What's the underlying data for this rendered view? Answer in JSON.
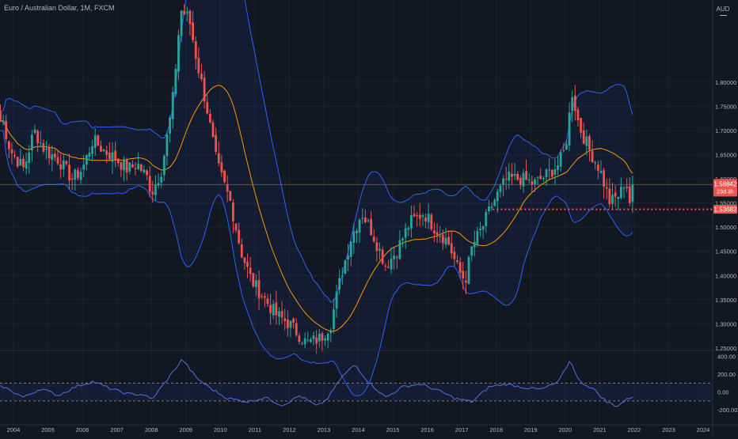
{
  "symbol": {
    "title": "Euro / Australian Dollar, 1M, FXCM",
    "currency": "AUD"
  },
  "colors": {
    "background": "#131722",
    "up": "#26a69a",
    "down": "#ef5350",
    "band": "#2962ff",
    "basis": "#ff9800",
    "cci": "#5b6ee1",
    "grid": "#1e2230",
    "axis_text": "#b2b5be"
  },
  "price_labels": {
    "last_price": "1.58842",
    "countdown": "23d 3h",
    "marked_price": "1.53683"
  },
  "chart_data": {
    "type": "candlestick",
    "x_axis_labels": [
      "2004",
      "2005",
      "2006",
      "2007",
      "2008",
      "2009",
      "2010",
      "2011",
      "2012",
      "2013",
      "2014",
      "2015",
      "2016",
      "2017",
      "2018",
      "2019",
      "2020",
      "2021",
      "2022",
      "2023",
      "2024"
    ],
    "price_axis": {
      "ticks": [
        "1.80000",
        "1.75000",
        "1.70000",
        "1.65000",
        "1.60000",
        "1.55000",
        "1.50000",
        "1.45000",
        "1.40000",
        "1.35000",
        "1.30000",
        "1.25000"
      ],
      "range": [
        1.245,
        1.97
      ]
    },
    "cci_axis": {
      "ticks": [
        "400.00",
        "200.00",
        "0.00",
        "-200.00"
      ],
      "range": [
        -350,
        450
      ],
      "levels": [
        100,
        -100
      ]
    },
    "anchors": [
      [
        2003.7,
        1.72
      ],
      [
        2003.9,
        1.66
      ],
      [
        2004.3,
        1.62
      ],
      [
        2004.6,
        1.7
      ],
      [
        2004.9,
        1.66
      ],
      [
        2005.3,
        1.64
      ],
      [
        2005.7,
        1.6
      ],
      [
        2006.0,
        1.62
      ],
      [
        2006.3,
        1.68
      ],
      [
        2006.6,
        1.66
      ],
      [
        2007.0,
        1.64
      ],
      [
        2007.3,
        1.62
      ],
      [
        2007.6,
        1.63
      ],
      [
        2007.9,
        1.6
      ],
      [
        2008.0,
        1.57
      ],
      [
        2008.3,
        1.62
      ],
      [
        2008.6,
        1.75
      ],
      [
        2008.85,
        1.95
      ],
      [
        2009.1,
        1.93
      ],
      [
        2009.3,
        1.85
      ],
      [
        2009.6,
        1.75
      ],
      [
        2009.9,
        1.63
      ],
      [
        2010.3,
        1.55
      ],
      [
        2010.6,
        1.45
      ],
      [
        2010.9,
        1.39
      ],
      [
        2011.2,
        1.36
      ],
      [
        2011.6,
        1.32
      ],
      [
        2012.0,
        1.3
      ],
      [
        2012.5,
        1.26
      ],
      [
        2012.9,
        1.27
      ],
      [
        2013.0,
        1.28
      ],
      [
        2013.2,
        1.3
      ],
      [
        2013.5,
        1.4
      ],
      [
        2013.8,
        1.48
      ],
      [
        2014.1,
        1.53
      ],
      [
        2014.4,
        1.49
      ],
      [
        2014.8,
        1.42
      ],
      [
        2015.1,
        1.45
      ],
      [
        2015.5,
        1.51
      ],
      [
        2015.9,
        1.53
      ],
      [
        2016.2,
        1.5
      ],
      [
        2016.6,
        1.47
      ],
      [
        2016.9,
        1.41
      ],
      [
        2017.1,
        1.39
      ],
      [
        2017.3,
        1.46
      ],
      [
        2017.6,
        1.5
      ],
      [
        2017.9,
        1.55
      ],
      [
        2018.3,
        1.6
      ],
      [
        2018.7,
        1.6
      ],
      [
        2019.1,
        1.59
      ],
      [
        2019.5,
        1.61
      ],
      [
        2019.8,
        1.63
      ],
      [
        2020.0,
        1.66
      ],
      [
        2020.2,
        1.78
      ],
      [
        2020.4,
        1.71
      ],
      [
        2020.7,
        1.66
      ],
      [
        2021.0,
        1.62
      ],
      [
        2021.3,
        1.55
      ],
      [
        2021.6,
        1.57
      ],
      [
        2021.75,
        1.6
      ],
      [
        2021.9,
        1.54
      ],
      [
        2022.0,
        1.588
      ]
    ],
    "cci_anchors": [
      [
        2003.7,
        60
      ],
      [
        2004.3,
        -60
      ],
      [
        2004.8,
        40
      ],
      [
        2005.3,
        -40
      ],
      [
        2005.8,
        60
      ],
      [
        2006.3,
        120
      ],
      [
        2006.8,
        40
      ],
      [
        2007.3,
        -20
      ],
      [
        2007.8,
        -30
      ],
      [
        2008.0,
        -90
      ],
      [
        2008.5,
        160
      ],
      [
        2008.9,
        370
      ],
      [
        2009.3,
        160
      ],
      [
        2009.8,
        20
      ],
      [
        2010.2,
        -70
      ],
      [
        2010.8,
        -110
      ],
      [
        2011.3,
        -60
      ],
      [
        2011.8,
        -150
      ],
      [
        2012.3,
        -40
      ],
      [
        2012.8,
        -160
      ],
      [
        2013.1,
        -80
      ],
      [
        2013.5,
        160
      ],
      [
        2013.9,
        310
      ],
      [
        2014.3,
        110
      ],
      [
        2014.8,
        -60
      ],
      [
        2015.3,
        60
      ],
      [
        2015.8,
        90
      ],
      [
        2016.3,
        20
      ],
      [
        2016.8,
        -70
      ],
      [
        2017.3,
        -110
      ],
      [
        2017.8,
        60
      ],
      [
        2018.3,
        90
      ],
      [
        2018.8,
        50
      ],
      [
        2019.3,
        30
      ],
      [
        2019.8,
        110
      ],
      [
        2020.15,
        360
      ],
      [
        2020.4,
        120
      ],
      [
        2020.8,
        40
      ],
      [
        2021.2,
        -110
      ],
      [
        2021.5,
        -160
      ],
      [
        2021.8,
        -80
      ],
      [
        2022.0,
        -40
      ]
    ]
  }
}
